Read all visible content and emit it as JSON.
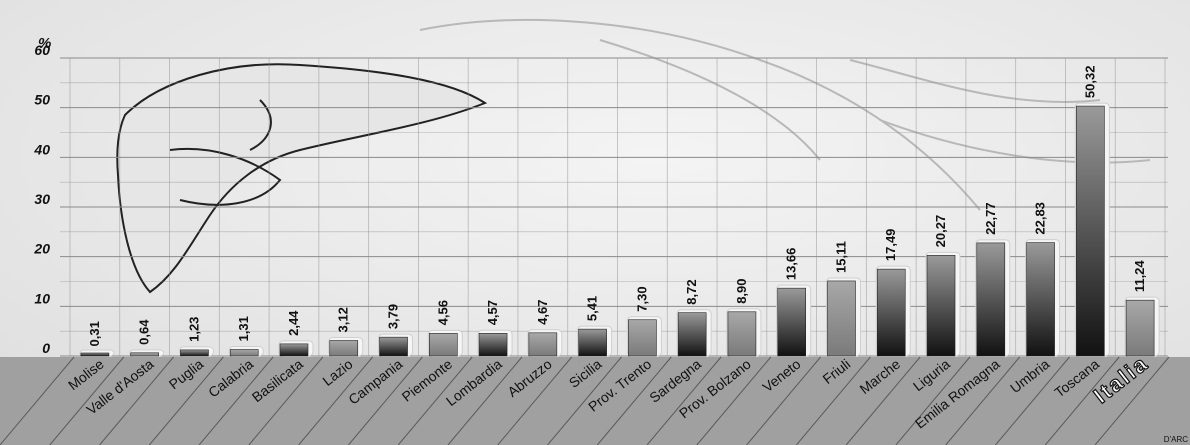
{
  "chart_data": {
    "type": "bar",
    "unit_label": "%",
    "categories": [
      "Molise",
      "Valle d'Aosta",
      "Puglia",
      "Calabria",
      "Basilicata",
      "Lazio",
      "Campania",
      "Piemonte",
      "Lombardia",
      "Abruzzo",
      "Sicilia",
      "Prov. Trento",
      "Sardegna",
      "Prov. Bolzano",
      "Veneto",
      "Friuli",
      "Marche",
      "Liguria",
      "Emilia Romagna",
      "Umbria",
      "Toscana",
      "Italia"
    ],
    "values": [
      0.31,
      0.64,
      1.23,
      1.31,
      2.44,
      3.12,
      3.79,
      4.56,
      4.57,
      4.67,
      5.41,
      7.3,
      8.72,
      8.9,
      13.66,
      15.11,
      17.49,
      20.27,
      22.77,
      22.83,
      50.32,
      11.24
    ],
    "value_labels": [
      "0,31",
      "0,64",
      "1,23",
      "1,31",
      "2,44",
      "3,12",
      "3,79",
      "4,56",
      "4,57",
      "4,67",
      "5,41",
      "7,30",
      "8,72",
      "8,90",
      "13,66",
      "15,11",
      "17,49",
      "20,27",
      "22,77",
      "22,83",
      "50,32",
      "11,24"
    ],
    "ylim": [
      0,
      60
    ],
    "yticks": [
      "0",
      "10",
      "20",
      "30",
      "40",
      "50",
      "60"
    ],
    "grid": true,
    "highlight_category": "Italia",
    "credit": "D'ARC",
    "colors": {
      "background": "#ececec",
      "grid": "#8a8a8a",
      "axis_band": "#a0a0a0",
      "bar_dark": "#111111",
      "bar_mid": "#6e6e6e",
      "bar_light": "#9a9a9a",
      "text": "#111111"
    }
  }
}
